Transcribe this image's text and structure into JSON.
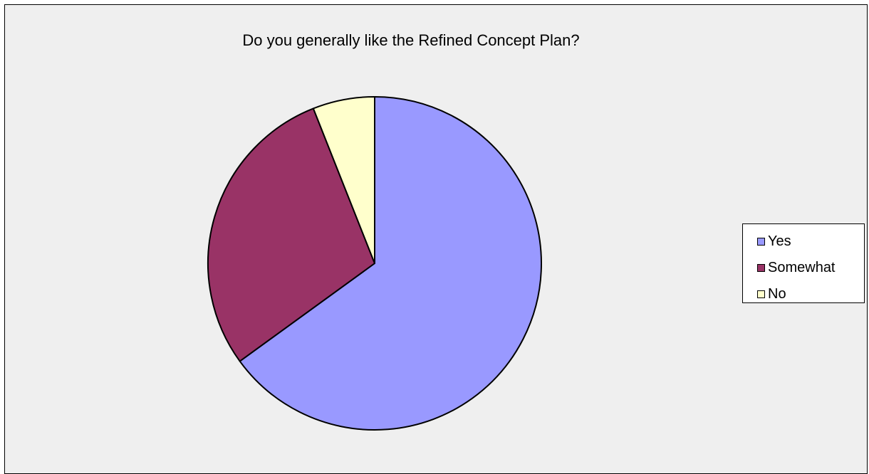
{
  "chart_data": {
    "type": "pie",
    "title": "Do you generally like the Refined Concept Plan?",
    "categories": [
      "Yes",
      "Somewhat",
      "No"
    ],
    "values": [
      65,
      29,
      6
    ],
    "colors": [
      "#9999ff",
      "#993366",
      "#ffffcc"
    ],
    "legend": "right"
  }
}
